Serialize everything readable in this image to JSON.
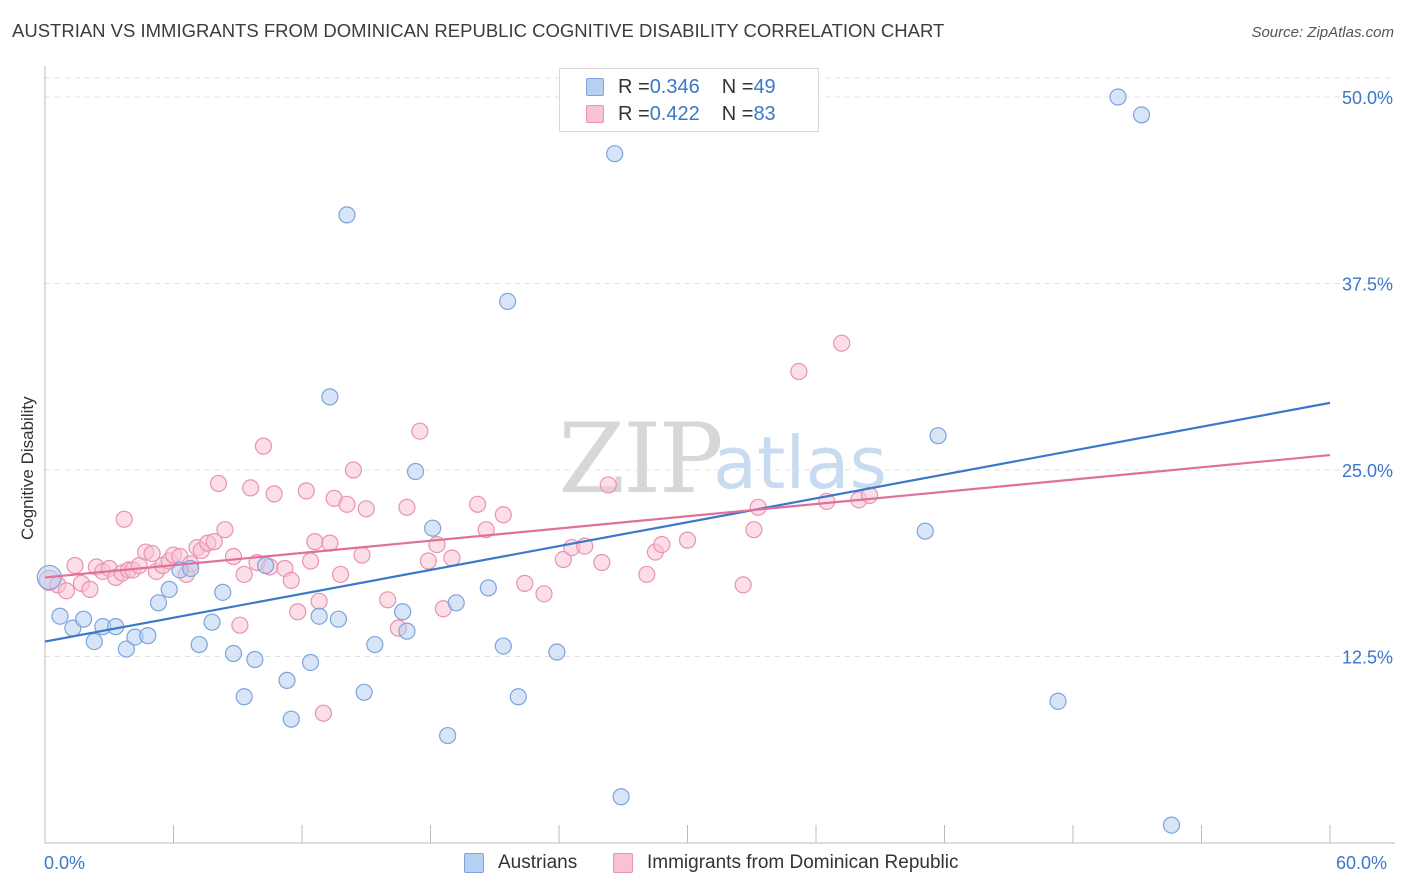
{
  "title": "AUSTRIAN VS IMMIGRANTS FROM DOMINICAN REPUBLIC COGNITIVE DISABILITY CORRELATION CHART",
  "source": "Source: ZipAtlas.com",
  "watermark": {
    "zip": "ZIP",
    "atlas": "atlas"
  },
  "legend": {
    "items": [
      {
        "r_label": "R = ",
        "r_value": "0.346",
        "n_label": "N = ",
        "n_value": "49"
      },
      {
        "r_label": "R = ",
        "r_value": "0.422",
        "n_label": "N = ",
        "n_value": "83"
      }
    ]
  },
  "colors": {
    "blue": "#3a78c9",
    "blue_fill": "#b8d0f0",
    "blue_stroke": "#7ba5dd",
    "pink": "#e0709a",
    "pink_fill": "#f7c3d3",
    "pink_stroke": "#e993b0",
    "grid": "#e0e0e0",
    "axis_text": "#3a78c9"
  },
  "chart_data": {
    "type": "scatter",
    "title": "AUSTRIAN VS IMMIGRANTS FROM DOMINICAN REPUBLIC COGNITIVE DISABILITY CORRELATION CHART",
    "xlabel": "",
    "ylabel": "Cognitive Disability",
    "xlim": [
      0,
      60
    ],
    "ylim": [
      0,
      52.5
    ],
    "x_tick_labels": [
      "0.0%",
      "60.0%"
    ],
    "y_ticks": [
      {
        "value": 12.5,
        "label": "12.5%"
      },
      {
        "value": 25.0,
        "label": "25.0%"
      },
      {
        "value": 37.5,
        "label": "37.5%"
      },
      {
        "value": 50.0,
        "label": "50.0%"
      }
    ],
    "series": [
      {
        "name": "Austrians",
        "color": "#3a78c9",
        "R": 0.346,
        "N": 49,
        "trend": {
          "x": [
            0,
            60
          ],
          "y": [
            13.5,
            29.5
          ]
        },
        "points": [
          [
            0.2,
            17.8
          ],
          [
            0.7,
            15.2
          ],
          [
            1.3,
            14.4
          ],
          [
            1.8,
            15.0
          ],
          [
            2.3,
            13.5
          ],
          [
            2.7,
            14.5
          ],
          [
            3.3,
            14.5
          ],
          [
            3.8,
            13.0
          ],
          [
            4.2,
            13.8
          ],
          [
            4.8,
            13.9
          ],
          [
            5.3,
            16.1
          ],
          [
            5.8,
            17.0
          ],
          [
            6.3,
            18.3
          ],
          [
            6.8,
            18.4
          ],
          [
            7.2,
            13.3
          ],
          [
            7.8,
            14.8
          ],
          [
            8.3,
            16.8
          ],
          [
            8.8,
            12.7
          ],
          [
            9.3,
            9.8
          ],
          [
            9.8,
            12.3
          ],
          [
            10.3,
            18.6
          ],
          [
            11.3,
            10.9
          ],
          [
            11.5,
            8.3
          ],
          [
            12.4,
            12.1
          ],
          [
            12.8,
            15.2
          ],
          [
            13.3,
            29.9
          ],
          [
            13.7,
            15.0
          ],
          [
            14.1,
            42.1
          ],
          [
            14.9,
            10.1
          ],
          [
            15.4,
            13.3
          ],
          [
            16.7,
            15.5
          ],
          [
            16.9,
            14.2
          ],
          [
            17.3,
            24.9
          ],
          [
            18.1,
            21.1
          ],
          [
            18.8,
            7.2
          ],
          [
            19.2,
            16.1
          ],
          [
            20.7,
            17.1
          ],
          [
            21.4,
            13.2
          ],
          [
            21.6,
            36.3
          ],
          [
            22.1,
            9.8
          ],
          [
            23.9,
            12.8
          ],
          [
            26.6,
            46.2
          ],
          [
            26.9,
            3.1
          ],
          [
            41.1,
            20.9
          ],
          [
            41.7,
            27.3
          ],
          [
            47.3,
            9.5
          ],
          [
            50.1,
            50.0
          ],
          [
            51.2,
            48.8
          ],
          [
            52.6,
            1.2
          ]
        ]
      },
      {
        "name": "Immigrants from Dominican Republic",
        "color": "#e0709a",
        "R": 0.422,
        "N": 83,
        "trend": {
          "x": [
            0,
            60
          ],
          "y": [
            17.8,
            26.0
          ]
        },
        "points": [
          [
            0.2,
            17.6
          ],
          [
            0.6,
            17.3
          ],
          [
            1.0,
            16.9
          ],
          [
            1.4,
            18.6
          ],
          [
            1.7,
            17.4
          ],
          [
            2.1,
            17.0
          ],
          [
            2.4,
            18.5
          ],
          [
            2.7,
            18.2
          ],
          [
            3.0,
            18.4
          ],
          [
            3.3,
            17.8
          ],
          [
            3.6,
            18.1
          ],
          [
            3.7,
            21.7
          ],
          [
            3.9,
            18.3
          ],
          [
            4.1,
            18.3
          ],
          [
            4.4,
            18.6
          ],
          [
            4.7,
            19.5
          ],
          [
            5.0,
            19.4
          ],
          [
            5.2,
            18.2
          ],
          [
            5.5,
            18.6
          ],
          [
            5.8,
            18.9
          ],
          [
            6.0,
            19.3
          ],
          [
            6.3,
            19.2
          ],
          [
            6.6,
            18.0
          ],
          [
            6.8,
            18.7
          ],
          [
            7.1,
            19.8
          ],
          [
            7.3,
            19.6
          ],
          [
            7.6,
            20.1
          ],
          [
            7.9,
            20.2
          ],
          [
            8.1,
            24.1
          ],
          [
            8.4,
            21.0
          ],
          [
            8.8,
            19.2
          ],
          [
            9.1,
            14.6
          ],
          [
            9.3,
            18.0
          ],
          [
            9.6,
            23.8
          ],
          [
            9.9,
            18.8
          ],
          [
            10.2,
            26.6
          ],
          [
            10.5,
            18.5
          ],
          [
            10.7,
            23.4
          ],
          [
            11.2,
            18.4
          ],
          [
            11.5,
            17.6
          ],
          [
            11.8,
            15.5
          ],
          [
            12.2,
            23.6
          ],
          [
            12.4,
            18.9
          ],
          [
            12.6,
            20.2
          ],
          [
            12.8,
            16.2
          ],
          [
            13.0,
            8.7
          ],
          [
            13.3,
            20.1
          ],
          [
            13.5,
            23.1
          ],
          [
            13.8,
            18.0
          ],
          [
            14.1,
            22.7
          ],
          [
            14.4,
            25.0
          ],
          [
            14.8,
            19.3
          ],
          [
            15.0,
            22.4
          ],
          [
            16.0,
            16.3
          ],
          [
            16.5,
            14.4
          ],
          [
            16.9,
            22.5
          ],
          [
            17.5,
            27.6
          ],
          [
            17.9,
            18.9
          ],
          [
            18.3,
            20.0
          ],
          [
            18.6,
            15.7
          ],
          [
            19.0,
            19.1
          ],
          [
            20.2,
            22.7
          ],
          [
            20.6,
            21.0
          ],
          [
            21.4,
            22.0
          ],
          [
            22.4,
            17.4
          ],
          [
            23.3,
            16.7
          ],
          [
            24.2,
            19.0
          ],
          [
            24.6,
            19.8
          ],
          [
            25.2,
            19.9
          ],
          [
            26.0,
            18.8
          ],
          [
            26.3,
            24.0
          ],
          [
            28.1,
            18.0
          ],
          [
            28.5,
            19.5
          ],
          [
            28.8,
            20.0
          ],
          [
            30.0,
            20.3
          ],
          [
            32.6,
            17.3
          ],
          [
            33.1,
            21.0
          ],
          [
            33.3,
            22.5
          ],
          [
            35.2,
            31.6
          ],
          [
            36.5,
            22.9
          ],
          [
            37.2,
            33.5
          ],
          [
            38.0,
            23.0
          ],
          [
            38.5,
            23.3
          ]
        ]
      }
    ],
    "legend_placement": "top-center and bottom"
  },
  "axis": {
    "y_label": "Cognitive Disability",
    "x_min_label": "0.0%",
    "x_max_label": "60.0%"
  },
  "bottom_legend": {
    "series_a": "Austrians",
    "series_b": "Immigrants from Dominican Republic"
  }
}
